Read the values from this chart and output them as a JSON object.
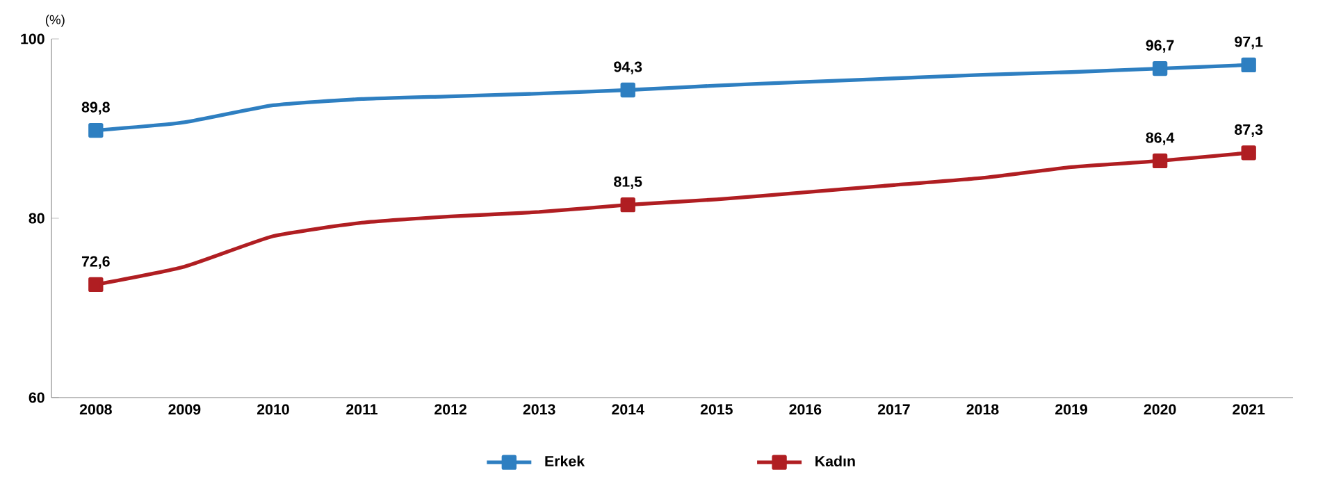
{
  "chart_data": {
    "type": "line",
    "ylabel": "(%)",
    "categories": [
      "2008",
      "2009",
      "2010",
      "2011",
      "2012",
      "2013",
      "2014",
      "2015",
      "2016",
      "2017",
      "2018",
      "2019",
      "2020",
      "2021"
    ],
    "series": [
      {
        "name": "Erkek",
        "color": "#2e7fc1",
        "values": [
          89.8,
          90.7,
          92.6,
          93.3,
          93.6,
          93.9,
          94.3,
          94.8,
          95.2,
          95.6,
          96.0,
          96.3,
          96.7,
          97.1
        ],
        "value_labels": [
          "89,8",
          null,
          null,
          null,
          null,
          null,
          "94,3",
          null,
          null,
          null,
          null,
          null,
          "96,7",
          "97,1"
        ]
      },
      {
        "name": "Kadın",
        "color": "#b01e22",
        "values": [
          72.6,
          74.6,
          78.0,
          79.5,
          80.2,
          80.7,
          81.5,
          82.1,
          82.9,
          83.7,
          84.5,
          85.7,
          86.4,
          87.3
        ],
        "value_labels": [
          "72,6",
          null,
          null,
          null,
          null,
          null,
          "81,5",
          null,
          null,
          null,
          null,
          null,
          "86,4",
          "87,3"
        ]
      }
    ],
    "ylim": [
      60,
      100
    ],
    "yticks": [
      60,
      80,
      100
    ],
    "grid": false,
    "legend": "bottom",
    "line_style": "solid"
  }
}
